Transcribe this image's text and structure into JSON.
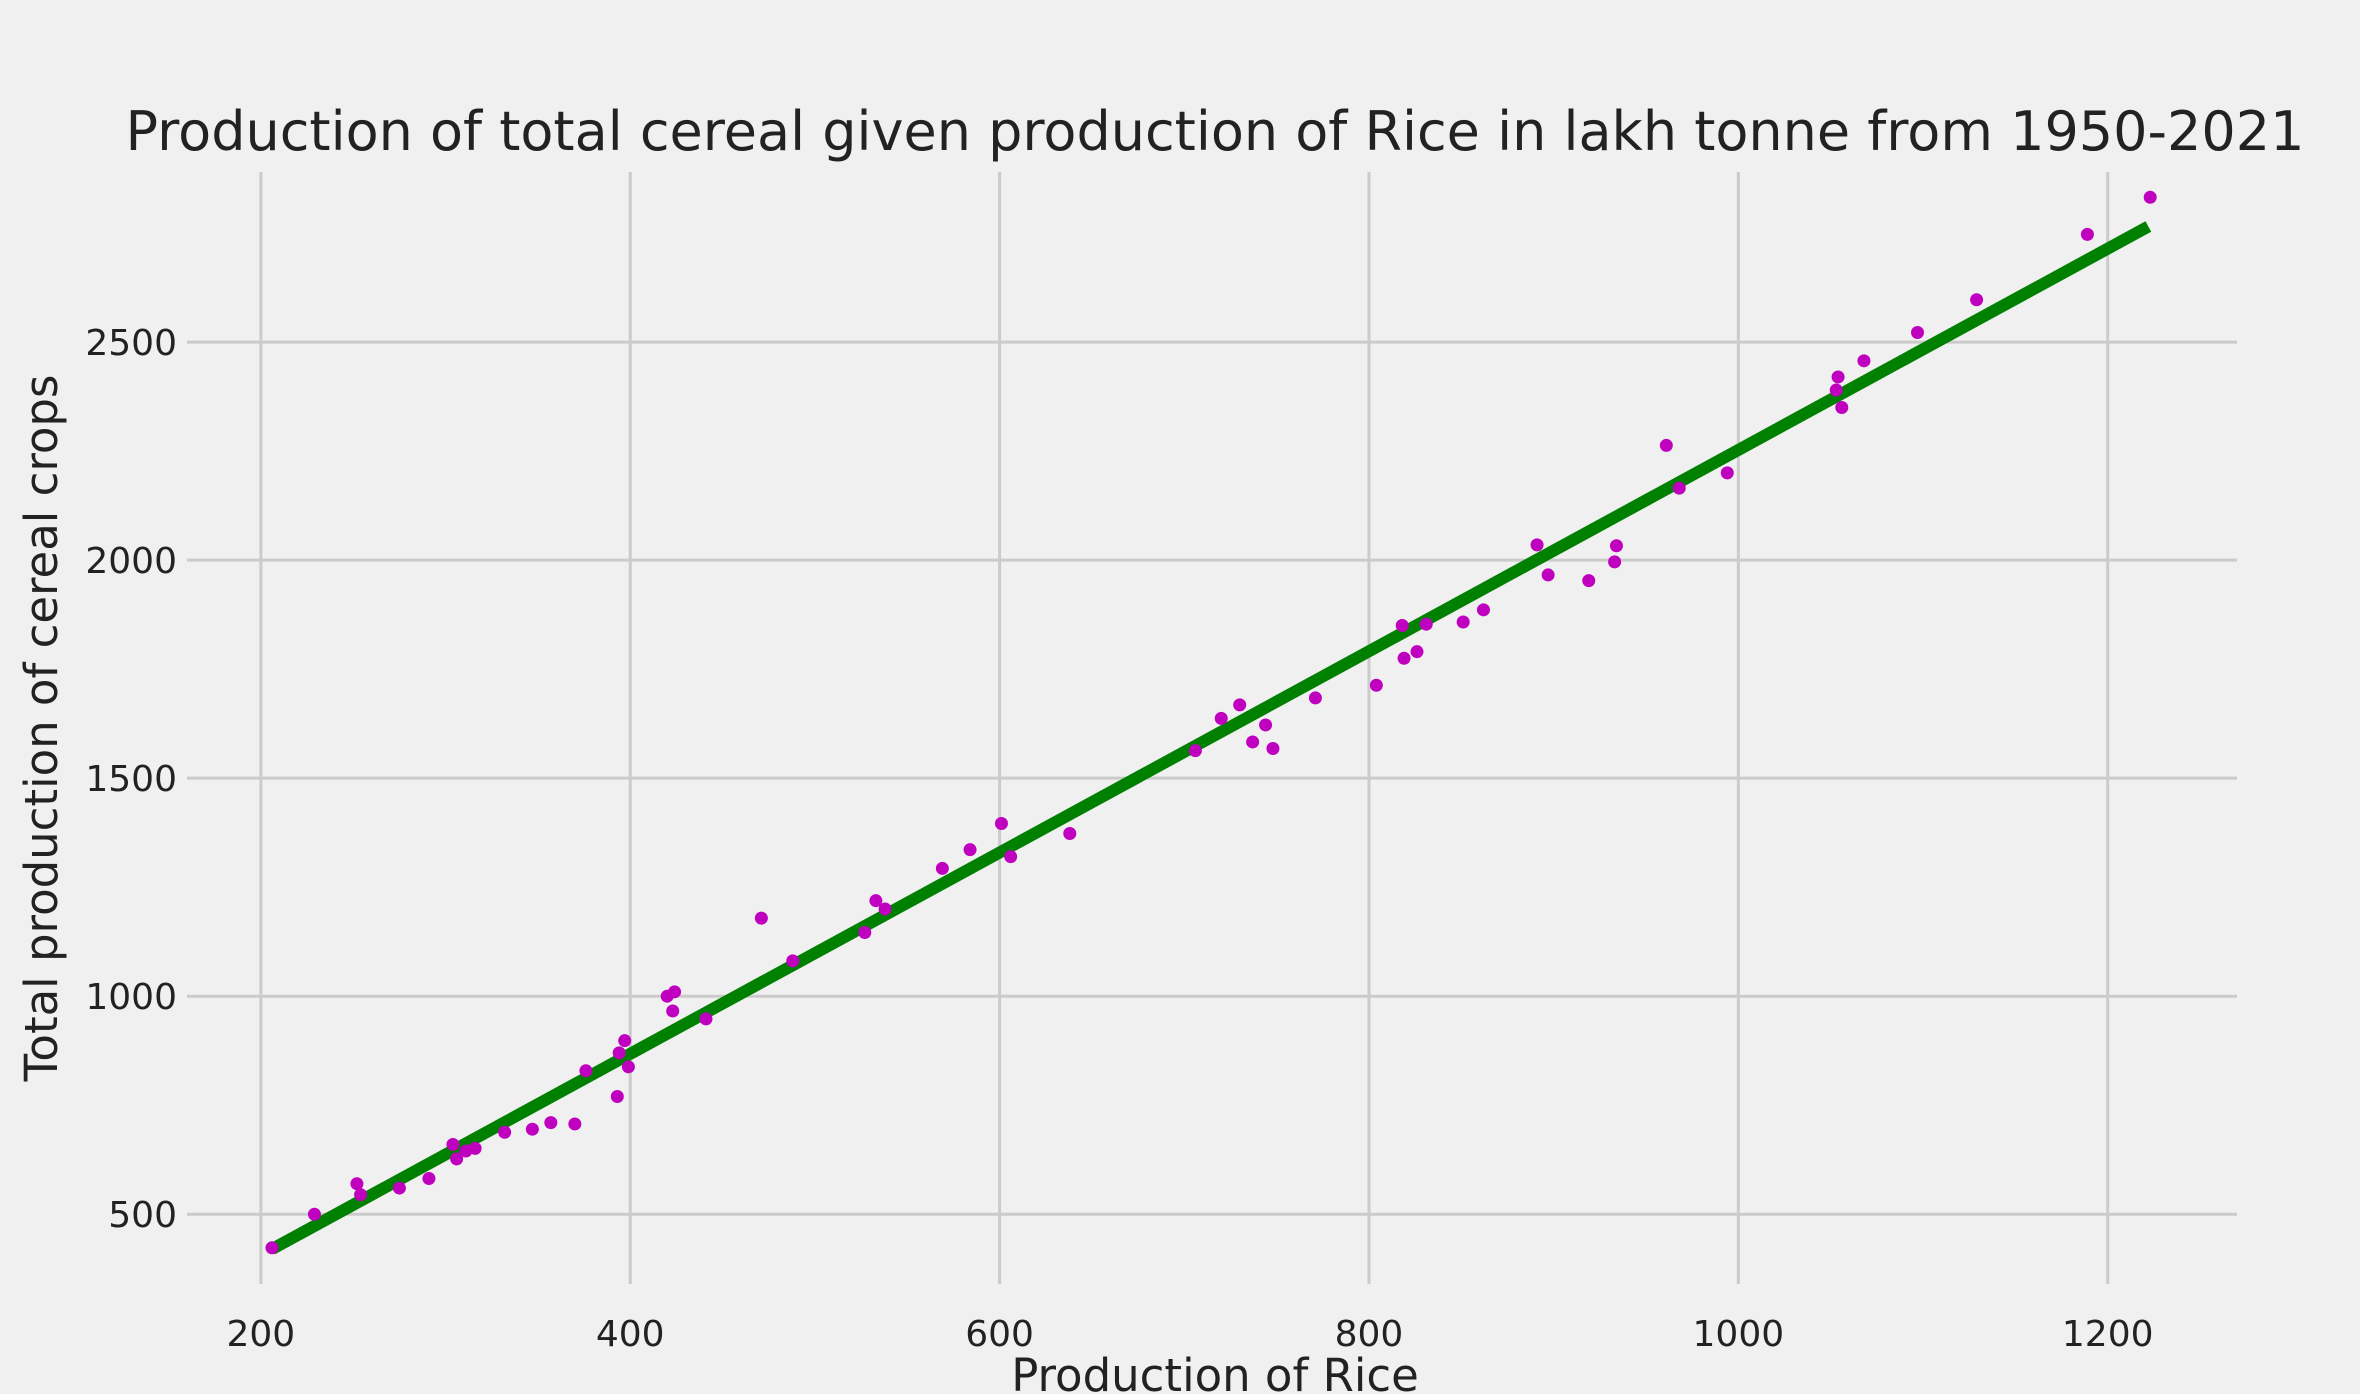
{
  "chart_data": {
    "type": "scatter",
    "title": "Production of total cereal given production of Rice in lakh tonne from 1950-2021",
    "xlabel": "Production of Rice",
    "ylabel": "Total production of cereal crops",
    "xlim": [
      160,
      1270
    ],
    "ylim": [
      340,
      2890
    ],
    "xticks": [
      200,
      400,
      600,
      800,
      1000,
      1200
    ],
    "yticks": [
      500,
      1000,
      1500,
      2000,
      2500
    ],
    "grid": true,
    "colors": {
      "points": "#bf00bf",
      "fit_line": "#008000",
      "grid": "#cbcbcb",
      "background": "#f0f0f0"
    },
    "series": [
      {
        "type": "scatter",
        "points": [
          [
            206,
            423
          ],
          [
            229,
            500
          ],
          [
            252,
            570
          ],
          [
            254,
            545
          ],
          [
            275,
            560
          ],
          [
            291,
            582
          ],
          [
            304,
            660
          ],
          [
            306,
            627
          ],
          [
            311,
            645
          ],
          [
            316,
            651
          ],
          [
            332,
            688
          ],
          [
            347,
            695
          ],
          [
            357,
            710
          ],
          [
            370,
            707
          ],
          [
            376,
            829
          ],
          [
            393,
            770
          ],
          [
            394,
            870
          ],
          [
            397,
            898
          ],
          [
            399,
            838
          ],
          [
            420,
            1000
          ],
          [
            423,
            966
          ],
          [
            424,
            1010
          ],
          [
            441,
            948
          ],
          [
            471,
            1179
          ],
          [
            488,
            1081
          ],
          [
            527,
            1146
          ],
          [
            533,
            1219
          ],
          [
            538,
            1200
          ],
          [
            569,
            1293
          ],
          [
            584,
            1336
          ],
          [
            601,
            1396
          ],
          [
            606,
            1320
          ],
          [
            638,
            1373
          ],
          [
            706,
            1563
          ],
          [
            720,
            1637
          ],
          [
            730,
            1668
          ],
          [
            737,
            1583
          ],
          [
            744,
            1622
          ],
          [
            748,
            1568
          ],
          [
            771,
            1684
          ],
          [
            804,
            1713
          ],
          [
            818,
            1850
          ],
          [
            819,
            1775
          ],
          [
            826,
            1790
          ],
          [
            831,
            1853
          ],
          [
            851,
            1858
          ],
          [
            862,
            1886
          ],
          [
            891,
            2035
          ],
          [
            897,
            1966
          ],
          [
            919,
            1953
          ],
          [
            933,
            1996
          ],
          [
            934,
            2033
          ],
          [
            961,
            2263
          ],
          [
            968,
            2165
          ],
          [
            994,
            2200
          ],
          [
            1053,
            2390
          ],
          [
            1054,
            2420
          ],
          [
            1056,
            2350
          ],
          [
            1068,
            2457
          ],
          [
            1097,
            2522
          ],
          [
            1129,
            2597
          ],
          [
            1189,
            2747
          ],
          [
            1223,
            2832
          ]
        ]
      },
      {
        "type": "line",
        "points": [
          [
            206,
            420
          ],
          [
            1222,
            2765
          ]
        ]
      }
    ]
  }
}
